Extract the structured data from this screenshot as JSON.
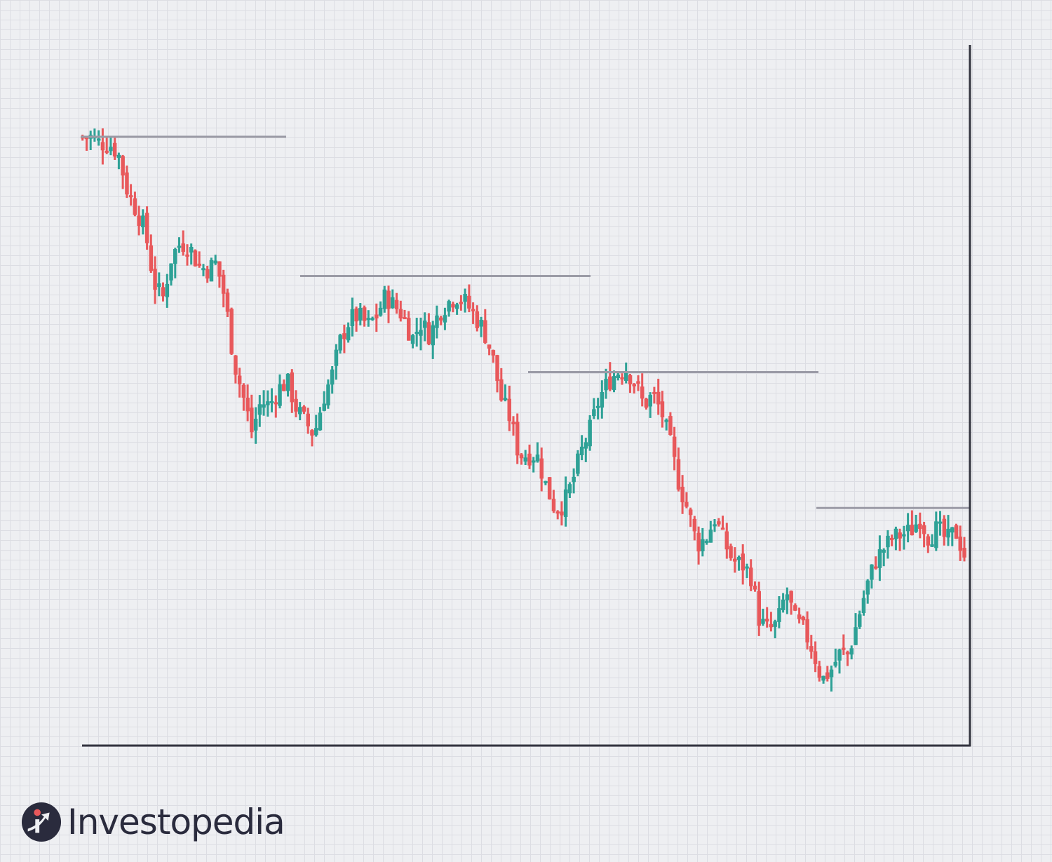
{
  "brand": {
    "name": "Investopedia"
  },
  "colors": {
    "up": "#2ea196",
    "down": "#e8585b",
    "axis": "#33343f",
    "resistance": "#9b9ba6"
  },
  "chart_data": {
    "type": "candlestick",
    "title": "",
    "xlabel": "",
    "ylabel": "",
    "ylim": [
      0,
      100
    ],
    "grid": true,
    "candles_anchor_points": [
      [
        0,
        91
      ],
      [
        1,
        91
      ],
      [
        2,
        90
      ],
      [
        3,
        90
      ],
      [
        4,
        88.5
      ],
      [
        5,
        83
      ],
      [
        6,
        80
      ],
      [
        7,
        77
      ],
      [
        8,
        69
      ],
      [
        9,
        66.5
      ],
      [
        10,
        73
      ],
      [
        11,
        75
      ],
      [
        12,
        74.5
      ],
      [
        13,
        71.5
      ],
      [
        14,
        71
      ],
      [
        15,
        72
      ],
      [
        16,
        66.5
      ],
      [
        17,
        57
      ],
      [
        18,
        52
      ],
      [
        19,
        46.5
      ],
      [
        20,
        51
      ],
      [
        21,
        50.5
      ],
      [
        22,
        53
      ],
      [
        23,
        54
      ],
      [
        24,
        50
      ],
      [
        25,
        48
      ],
      [
        26,
        46
      ],
      [
        27,
        51.5
      ],
      [
        28,
        55
      ],
      [
        29,
        60.5
      ],
      [
        30,
        63.5
      ],
      [
        31,
        64
      ],
      [
        32,
        62.5
      ],
      [
        33,
        64
      ],
      [
        34,
        67
      ],
      [
        35,
        65.5
      ],
      [
        36,
        64
      ],
      [
        37,
        60.5
      ],
      [
        38,
        63
      ],
      [
        39,
        61
      ],
      [
        40,
        64.5
      ],
      [
        41,
        66
      ],
      [
        42,
        67
      ],
      [
        43,
        66
      ],
      [
        44,
        64
      ],
      [
        45,
        62
      ],
      [
        46,
        58
      ],
      [
        47,
        51.5
      ],
      [
        48,
        48.5
      ],
      [
        49,
        43
      ],
      [
        50,
        43
      ],
      [
        51,
        43
      ],
      [
        52,
        38.5
      ],
      [
        53,
        35
      ],
      [
        54,
        35.5
      ],
      [
        55,
        39
      ],
      [
        56,
        43.5
      ],
      [
        57,
        47
      ],
      [
        58,
        51.5
      ],
      [
        59,
        54
      ],
      [
        60,
        55.5
      ],
      [
        61,
        56
      ],
      [
        62,
        54
      ],
      [
        63,
        50.5
      ],
      [
        64,
        52
      ],
      [
        65,
        49.5
      ],
      [
        66,
        44.5
      ],
      [
        67,
        38.5
      ],
      [
        68,
        34.5
      ],
      [
        69,
        29.5
      ],
      [
        70,
        30.5
      ],
      [
        71,
        33.5
      ],
      [
        72,
        30
      ],
      [
        73,
        27
      ],
      [
        74,
        26.5
      ],
      [
        75,
        25
      ],
      [
        76,
        18
      ],
      [
        77,
        16.5
      ],
      [
        78,
        17.5
      ],
      [
        79,
        22.5
      ],
      [
        80,
        18
      ],
      [
        81,
        16.5
      ],
      [
        82,
        13.5
      ],
      [
        83,
        9
      ],
      [
        84,
        10.5
      ],
      [
        85,
        13
      ],
      [
        86,
        13
      ],
      [
        87,
        18
      ],
      [
        88,
        23
      ],
      [
        89,
        27
      ],
      [
        90,
        29
      ],
      [
        91,
        30.5
      ],
      [
        92,
        31
      ],
      [
        93,
        31.5
      ],
      [
        94,
        33.5
      ],
      [
        95,
        30.5
      ],
      [
        96,
        32
      ],
      [
        97,
        30
      ],
      [
        98,
        31.5
      ],
      [
        99,
        28
      ]
    ],
    "resistance_levels": [
      91,
      70,
      55.5,
      35
    ]
  }
}
